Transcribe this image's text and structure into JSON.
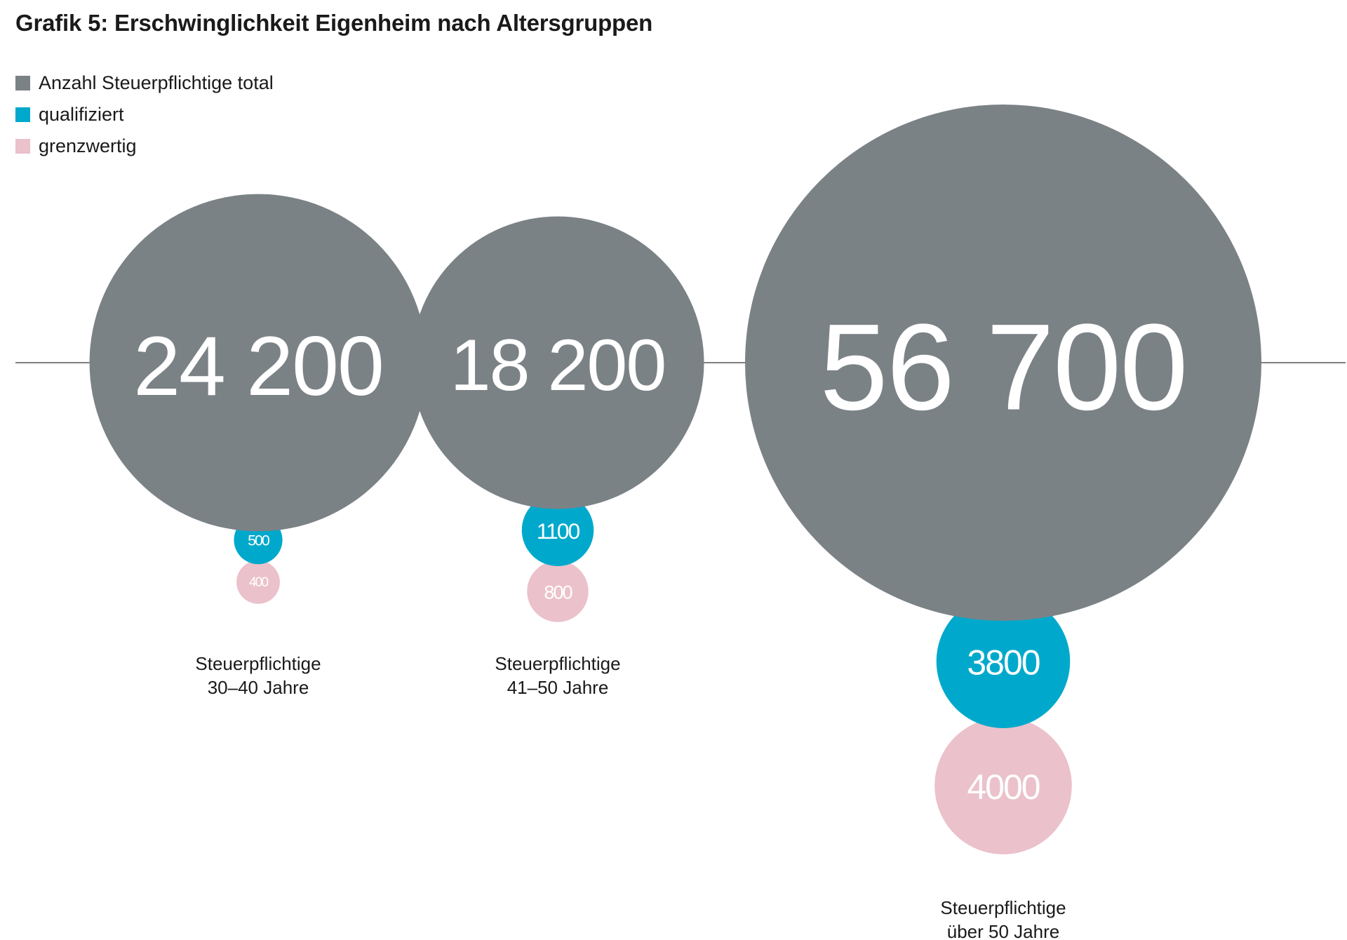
{
  "chart_data": {
    "type": "bubble",
    "title": "Grafik 5: Erschwinglichkeit Eigenheim nach Altersgruppen",
    "legend": [
      {
        "key": "total",
        "label": "Anzahl Steuerpflichtige total",
        "color": "#7b8286"
      },
      {
        "key": "qualifiziert",
        "label": "qualifiziert",
        "color": "#00a9cc"
      },
      {
        "key": "grenzwertig",
        "label": "grenzwertig",
        "color": "#ebc1cb"
      }
    ],
    "legend_position": "top-left",
    "groups": [
      {
        "label_line1": "Steuerpflichtige",
        "label_line2": "30–40 Jahre",
        "total": 24200,
        "total_label": "24 200",
        "qualifiziert": 500,
        "qualifiziert_label": "500",
        "grenzwertig": 400,
        "grenzwertig_label": "400"
      },
      {
        "label_line1": "Steuerpflichtige",
        "label_line2": "41–50 Jahre",
        "total": 18200,
        "total_label": "18 200",
        "qualifiziert": 1100,
        "qualifiziert_label": "1100",
        "grenzwertig": 800,
        "grenzwertig_label": "800"
      },
      {
        "label_line1": "Steuerpflichtige",
        "label_line2": "über 50 Jahre",
        "total": 56700,
        "total_label": "56 700",
        "qualifiziert": 3800,
        "qualifiziert_label": "3800",
        "grenzwertig": 4000,
        "grenzwertig_label": "4000"
      }
    ]
  }
}
